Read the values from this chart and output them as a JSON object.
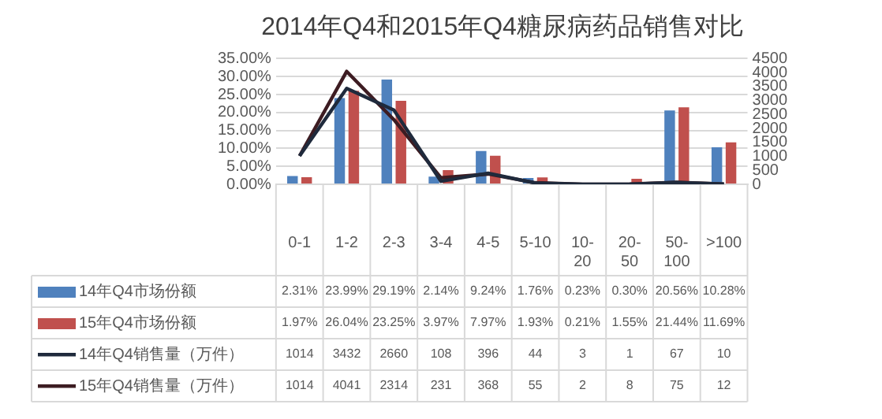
{
  "chart_data": {
    "type": "bar",
    "title": "2014年Q4和2015年Q4糖尿病药品销售对比",
    "categories": [
      "0-1",
      "1-2",
      "2-3",
      "3-4",
      "4-5",
      "5-10",
      "10-20",
      "20-50",
      "50-100",
      ">100"
    ],
    "series": [
      {
        "name": "14年Q4市场份额",
        "color": "#4f81bd",
        "values": [
          2.31,
          23.99,
          29.19,
          2.14,
          9.24,
          1.76,
          0.23,
          0.3,
          20.56,
          10.28
        ],
        "value_labels": [
          "2.31%",
          "23.99%",
          "29.19%",
          "2.14%",
          "9.24%",
          "1.76%",
          "0.23%",
          "0.30%",
          "20.56%",
          "10.28%"
        ]
      },
      {
        "name": "15年Q4市场份额",
        "color": "#c0504d",
        "values": [
          1.97,
          26.04,
          23.25,
          3.97,
          7.97,
          1.93,
          0.21,
          1.55,
          21.44,
          11.69
        ],
        "value_labels": [
          "1.97%",
          "26.04%",
          "23.25%",
          "3.97%",
          "7.97%",
          "1.93%",
          "0.21%",
          "1.55%",
          "21.44%",
          "11.69%"
        ]
      },
      {
        "name": "14年Q4销售量（万件）",
        "type": "line",
        "axis": "y2",
        "color": "#1f2a3c",
        "values": [
          1014,
          3432,
          2660,
          108,
          396,
          44,
          3,
          1,
          67,
          10
        ],
        "value_labels": [
          "1014",
          "3432",
          "2660",
          "108",
          "396",
          "44",
          "3",
          "1",
          "67",
          "10"
        ]
      },
      {
        "name": "15年Q4销售量（万件）",
        "type": "line",
        "axis": "y2",
        "color": "#3d1c22",
        "values": [
          1014,
          4041,
          2314,
          231,
          368,
          55,
          2,
          8,
          75,
          12
        ],
        "value_labels": [
          "1014",
          "4041",
          "2314",
          "231",
          "368",
          "55",
          "2",
          "8",
          "75",
          "12"
        ]
      }
    ],
    "ylim": [
      0,
      35
    ],
    "yticks": [
      {
        "value": 0,
        "label": "0.00%"
      },
      {
        "value": 5,
        "label": "5.00%"
      },
      {
        "value": 10,
        "label": "10.00%"
      },
      {
        "value": 15,
        "label": "15.00%"
      },
      {
        "value": 20,
        "label": "20.00%"
      },
      {
        "value": 25,
        "label": "25.00%"
      },
      {
        "value": 30,
        "label": "30.00%"
      },
      {
        "value": 35,
        "label": "35.00%"
      }
    ],
    "y2lim": [
      0,
      4500
    ],
    "y2ticks": [
      0,
      500,
      1000,
      1500,
      2000,
      2500,
      3000,
      3500,
      4000,
      4500
    ],
    "grid": "y",
    "marker": "none",
    "legend": "bottom"
  }
}
